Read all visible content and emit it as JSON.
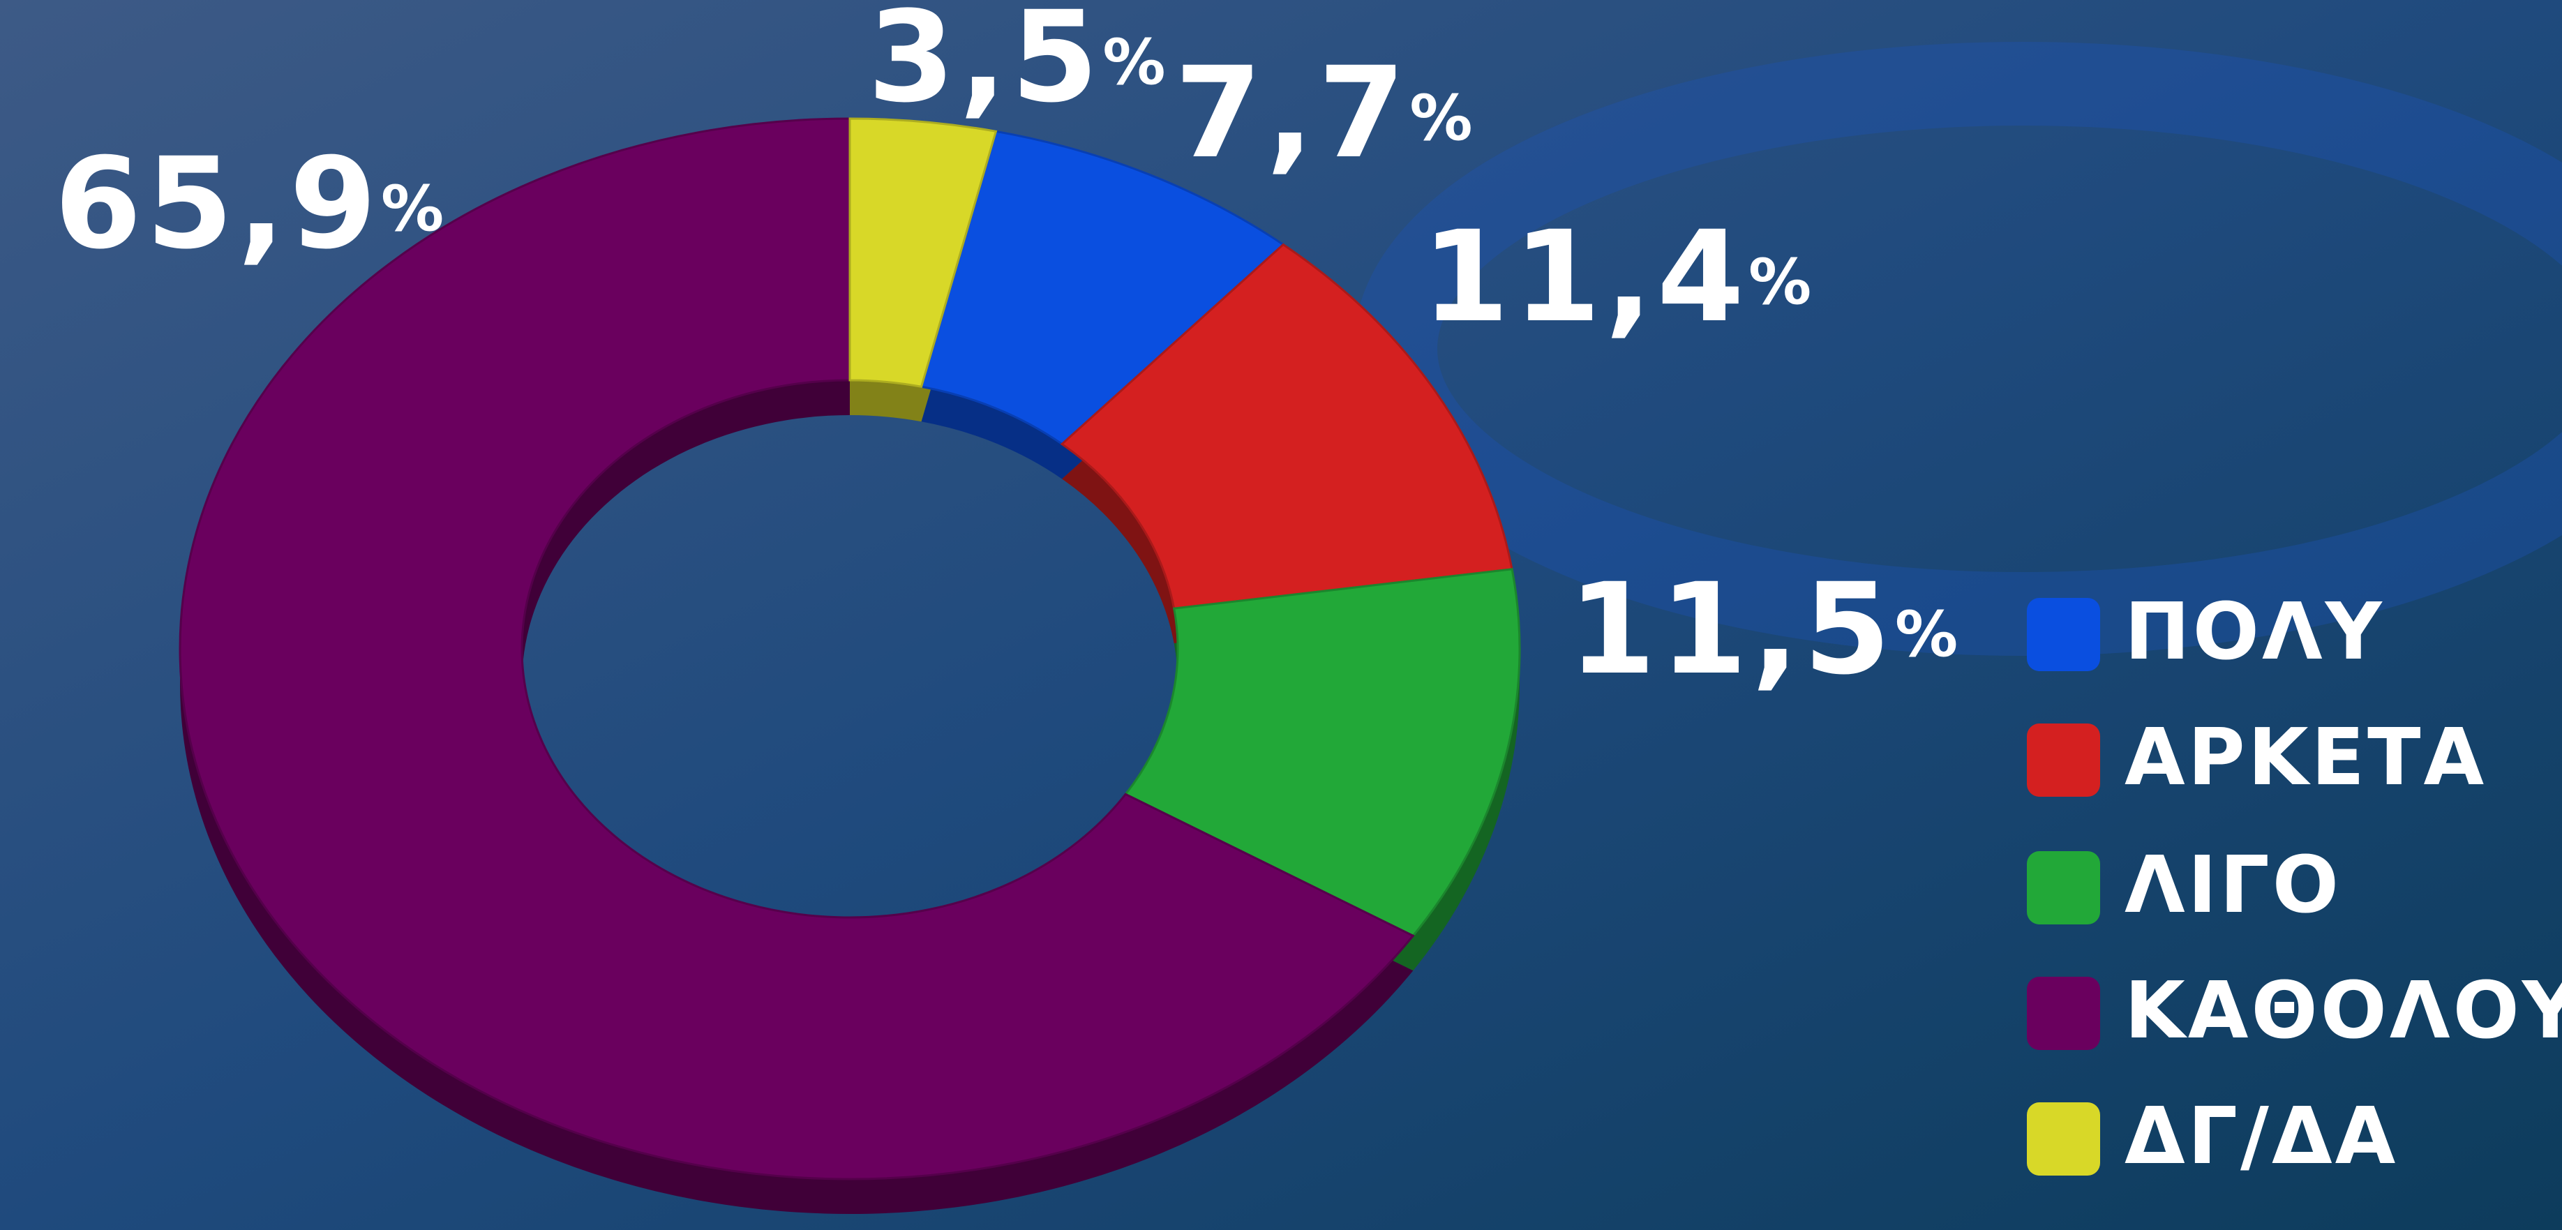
{
  "chart_data": {
    "type": "donut",
    "categories": [
      "ΠΟΛΥ",
      "ΑΡΚΕΤΑ",
      "ΛΙΓΟ",
      "ΚΑΘΟΛΟΥ",
      "ΔΓ/ΔΑ"
    ],
    "values": [
      7.7,
      11.4,
      11.5,
      65.9,
      3.5
    ],
    "value_labels": [
      "7,7",
      "11,4",
      "11,5",
      "65,9",
      "3,5"
    ],
    "unit": "%",
    "colors": [
      "#0a4fe0",
      "#d42020",
      "#22a838",
      "#6a005e",
      "#d8d828"
    ],
    "legend": "right"
  }
}
